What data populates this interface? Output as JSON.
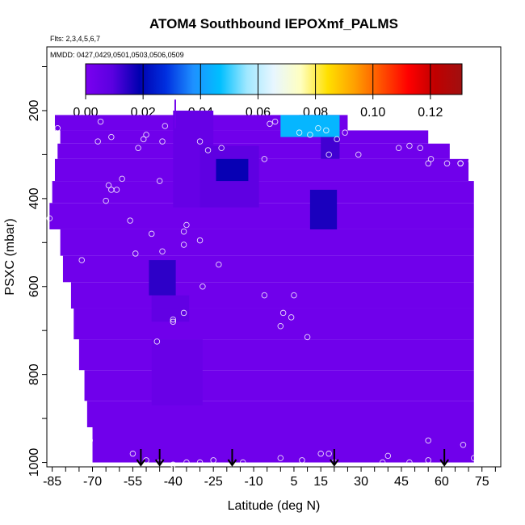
{
  "chart_data": {
    "type": "heatmap",
    "title": "ATOM4 Southbound IEPOXmf_PALMS",
    "flights_label": "Flts: 2,3,4,5,6,7",
    "dates_label": "MMDD: 0427,0429,0501,0503,0506,0509",
    "xlabel": "Latitude (deg N)",
    "ylabel": "PSXC (mbar)",
    "xlim": [
      -87,
      82
    ],
    "ylim": [
      1010,
      55
    ],
    "x_ticks": [
      "-85",
      "-70",
      "-55",
      "-40",
      "-25",
      "-10",
      "5",
      "15",
      "30",
      "45",
      "60",
      "75"
    ],
    "y_ticks": [
      "200",
      "400",
      "600",
      "800",
      "1000"
    ],
    "colorbar": {
      "min": 0.0,
      "max": 0.131,
      "tick_values": [
        0.0,
        0.02,
        0.04,
        0.06,
        0.08,
        0.1,
        0.12
      ],
      "tick_labels": [
        "0.00",
        "0.02",
        "0.04",
        "0.06",
        "0.08",
        "0.10",
        "0.12"
      ],
      "colors": [
        "#7b00f0",
        "#5a00e0",
        "#0000b0",
        "#0030e0",
        "#1e90ff",
        "#00bfff",
        "#a0e8ff",
        "#e8f6ff",
        "#ffffc0",
        "#ffe000",
        "#ffa000",
        "#ff5000",
        "#ff0000",
        "#c00000",
        "#a01010"
      ]
    },
    "background_value": 0.003,
    "coverage_bands": [
      {
        "p_top": 210,
        "p_bot": 245,
        "lat_min": -84,
        "lat_max": 25
      },
      {
        "p_top": 245,
        "p_bot": 275,
        "lat_min": -82,
        "lat_max": 55
      },
      {
        "p_top": 275,
        "p_bot": 310,
        "lat_min": -83,
        "lat_max": 63
      },
      {
        "p_top": 310,
        "p_bot": 360,
        "lat_min": -84,
        "lat_max": 70
      },
      {
        "p_top": 360,
        "p_bot": 410,
        "lat_min": -85,
        "lat_max": 72
      },
      {
        "p_top": 410,
        "p_bot": 470,
        "lat_min": -86,
        "lat_max": 72
      },
      {
        "p_top": 470,
        "p_bot": 530,
        "lat_min": -82,
        "lat_max": 72
      },
      {
        "p_top": 530,
        "p_bot": 590,
        "lat_min": -81,
        "lat_max": 72
      },
      {
        "p_top": 590,
        "p_bot": 650,
        "lat_min": -78,
        "lat_max": 72
      },
      {
        "p_top": 650,
        "p_bot": 720,
        "lat_min": -77,
        "lat_max": 72
      },
      {
        "p_top": 720,
        "p_bot": 790,
        "lat_min": -75,
        "lat_max": 72
      },
      {
        "p_top": 790,
        "p_bot": 860,
        "lat_min": -73,
        "lat_max": 72
      },
      {
        "p_top": 860,
        "p_bot": 920,
        "lat_min": -72,
        "lat_max": 72
      },
      {
        "p_top": 920,
        "p_bot": 1000,
        "lat_min": -70,
        "lat_max": 72
      }
    ],
    "hotspots": [
      {
        "lat_min": 0,
        "lat_max": 22,
        "p_top": 210,
        "p_bot": 260,
        "value": 0.045
      },
      {
        "lat_min": 7,
        "lat_max": 22,
        "p_top": 210,
        "p_bot": 250,
        "value": 0.025
      },
      {
        "lat_min": 15,
        "lat_max": 22,
        "p_top": 255,
        "p_bot": 310,
        "value": 0.012
      },
      {
        "lat_min": -24,
        "lat_max": -12,
        "p_top": 310,
        "p_bot": 360,
        "value": 0.018
      },
      {
        "lat_min": -30,
        "lat_max": -8,
        "p_top": 280,
        "p_bot": 420,
        "value": 0.008
      },
      {
        "lat_min": -40,
        "lat_max": -25,
        "p_top": 200,
        "p_bot": 420,
        "value": 0.006
      },
      {
        "lat_min": 11,
        "lat_max": 21,
        "p_top": 380,
        "p_bot": 470,
        "value": 0.016
      },
      {
        "lat_min": -49,
        "lat_max": -39,
        "p_top": 540,
        "p_bot": 620,
        "value": 0.014
      },
      {
        "lat_min": -48,
        "lat_max": -34,
        "p_top": 620,
        "p_bot": 680,
        "value": 0.007
      },
      {
        "lat_min": -48,
        "lat_max": -29,
        "p_top": 720,
        "p_bot": 870,
        "value": 0.005
      }
    ],
    "observations": {
      "lat": [
        -83,
        -86,
        -74,
        -68,
        -67,
        -64,
        -61,
        -59,
        -56,
        -54,
        -53,
        -45,
        -48,
        -44,
        -36,
        -30,
        -35,
        -36,
        -50,
        -51,
        -43,
        -40,
        -22,
        -27,
        -30,
        -6,
        -4,
        -2,
        0,
        4,
        7,
        11,
        14,
        17,
        18,
        21,
        24,
        29,
        44,
        48,
        52,
        55,
        56,
        62,
        67,
        67,
        71,
        72,
        -63,
        -65,
        -63,
        -71,
        -46,
        -44,
        -40,
        -36,
        -29,
        -23,
        -6,
        1,
        5,
        10,
        15,
        18,
        40,
        55,
        -19,
        -14
      ],
      "p": [
        240,
        445,
        540,
        270,
        225,
        370,
        380,
        355,
        450,
        525,
        285,
        360,
        480,
        520,
        475,
        495,
        460,
        505,
        255,
        265,
        235,
        675,
        285,
        290,
        270,
        310,
        230,
        225,
        690,
        670,
        250,
        255,
        240,
        245,
        300,
        265,
        250,
        300,
        285,
        280,
        285,
        320,
        310,
        320,
        320,
        320,
        315,
        315,
        380,
        405,
        260,
        950,
        725,
        270,
        680,
        660,
        600,
        550,
        620,
        660,
        620,
        715,
        980,
        980,
        985,
        950,
        200,
        1000
      ],
      "p_note": "pressure levels of observation circles",
      "extra": [
        {
          "lat": -83,
          "p": 960
        },
        {
          "lat": -55,
          "p": 980
        },
        {
          "lat": -50,
          "p": 995
        },
        {
          "lat": -45,
          "p": 1000
        },
        {
          "lat": -40,
          "p": 1005
        },
        {
          "lat": -35,
          "p": 1000
        },
        {
          "lat": -30,
          "p": 1000
        },
        {
          "lat": -25,
          "p": 995
        },
        {
          "lat": 0,
          "p": 990
        },
        {
          "lat": 8,
          "p": 995
        },
        {
          "lat": 20,
          "p": 1000
        },
        {
          "lat": 38,
          "p": 1000
        },
        {
          "lat": 48,
          "p": 1000
        },
        {
          "lat": 55,
          "p": 995
        },
        {
          "lat": 68,
          "p": 960
        },
        {
          "lat": 72,
          "p": 990
        }
      ]
    },
    "flight_arrows_lat": [
      -52,
      -45,
      -18,
      20,
      61
    ]
  }
}
